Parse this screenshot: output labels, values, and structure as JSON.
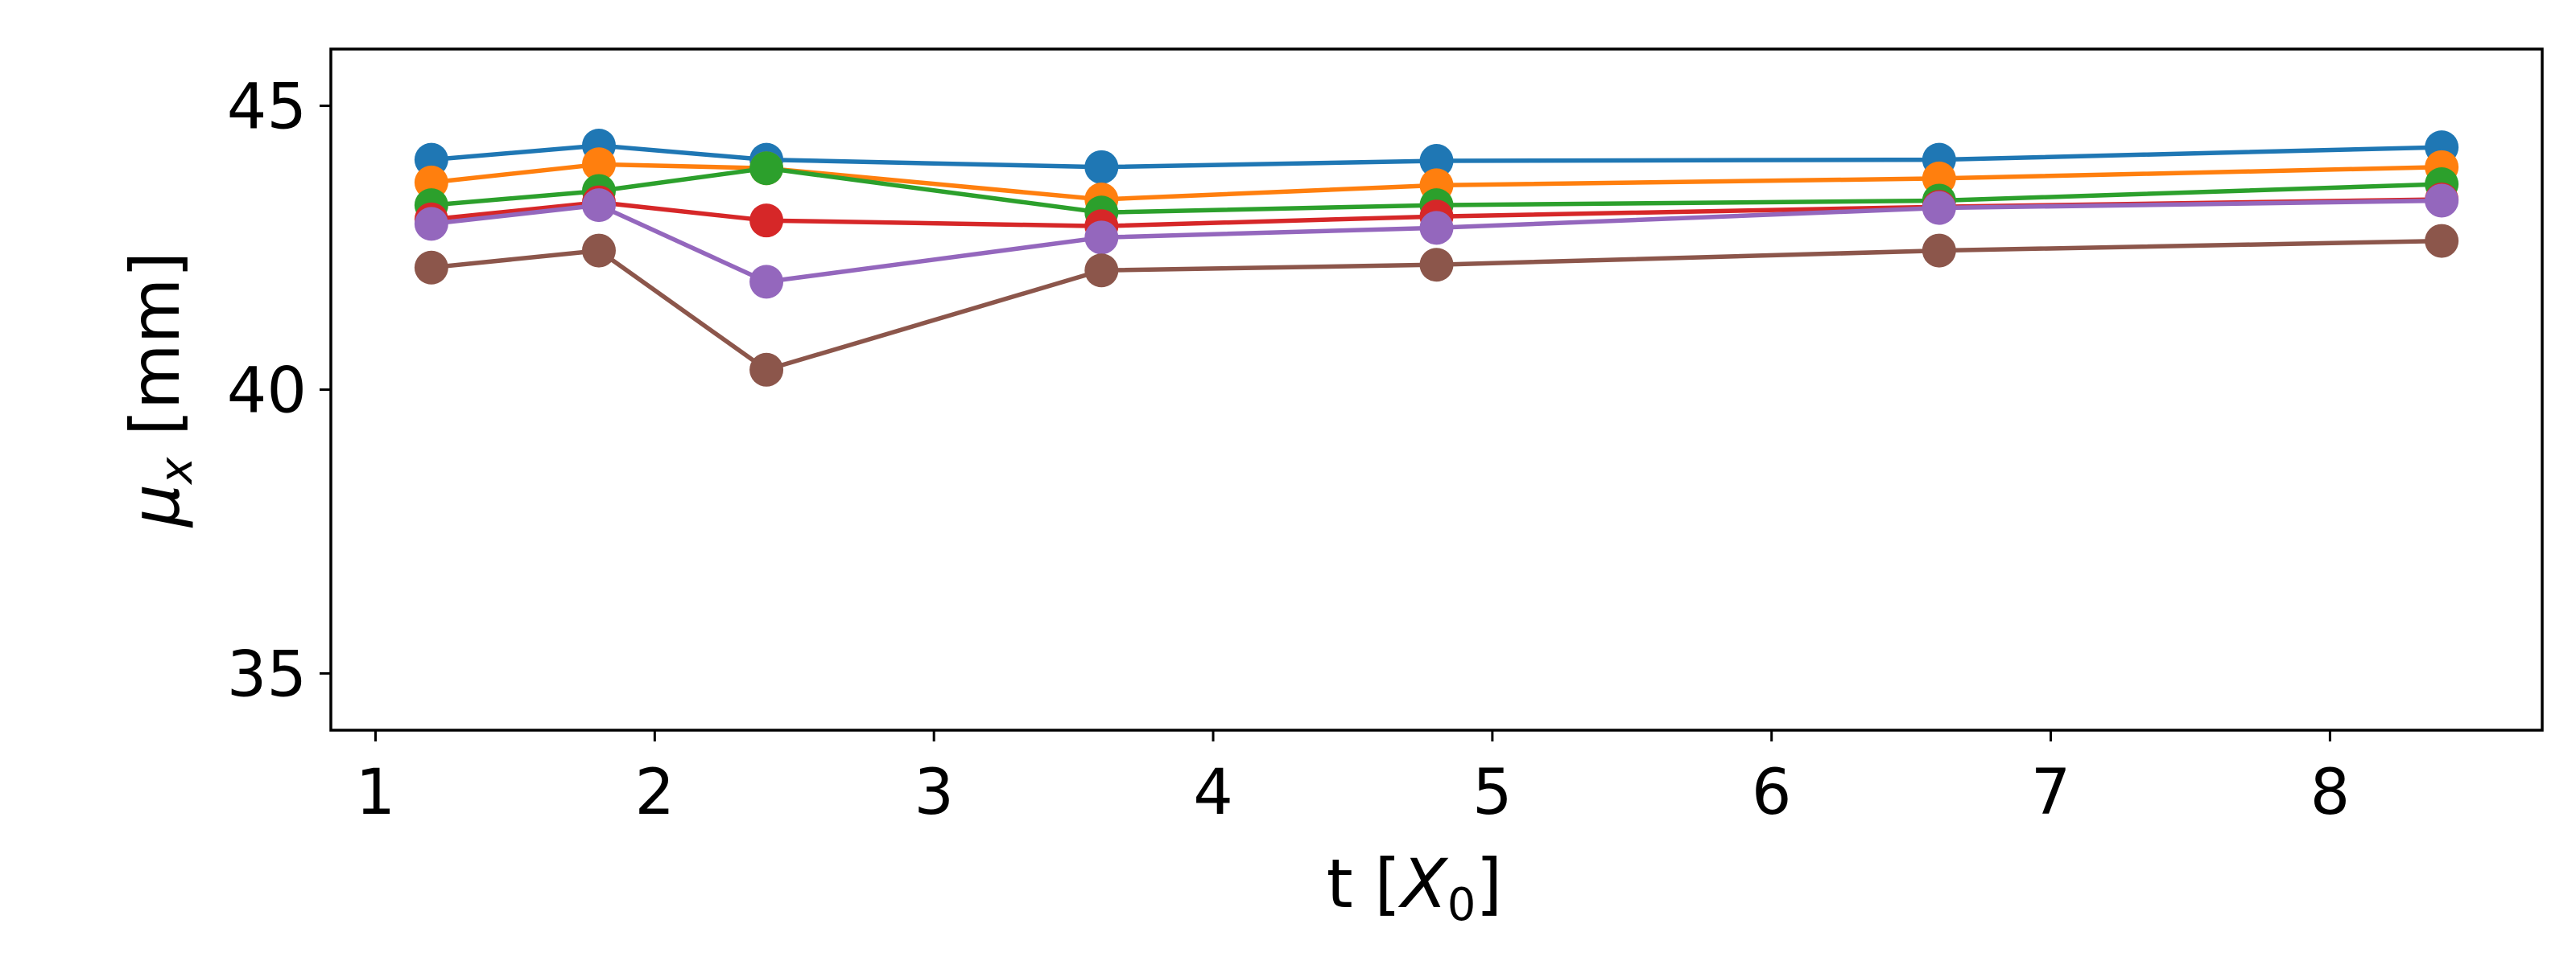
{
  "chart_data": {
    "type": "line",
    "title": "",
    "xlabel": "t [X₀]",
    "ylabel": "μₓ [mm]",
    "xlabel_parts": {
      "prefix": "t [",
      "symbol": "X",
      "sub": "0",
      "suffix": "]"
    },
    "ylabel_parts": {
      "symbol": "μ",
      "sub": "x",
      "suffix": " [mm]"
    },
    "xlim": [
      0.84,
      8.76
    ],
    "ylim": [
      34.0,
      46.0
    ],
    "xticks": [
      1,
      2,
      3,
      4,
      5,
      6,
      7,
      8
    ],
    "yticks": [
      35,
      40,
      45
    ],
    "grid": false,
    "x": [
      1.2,
      1.8,
      2.4,
      3.6,
      4.8,
      6.6,
      8.4
    ],
    "series": [
      {
        "color": "#1f77b4",
        "values": [
          44.05,
          44.3,
          44.05,
          43.92,
          44.03,
          44.05,
          44.27
        ]
      },
      {
        "color": "#ff7f0e",
        "values": [
          43.65,
          43.97,
          43.9,
          43.35,
          43.6,
          43.72,
          43.92
        ]
      },
      {
        "color": "#2ca02c",
        "values": [
          43.25,
          43.5,
          43.9,
          43.12,
          43.25,
          43.33,
          43.62
        ]
      },
      {
        "color": "#d62728",
        "values": [
          43.0,
          43.3,
          42.98,
          42.88,
          43.05,
          43.22,
          43.35
        ]
      },
      {
        "color": "#9467bd",
        "values": [
          42.92,
          43.25,
          41.9,
          42.68,
          42.85,
          43.2,
          43.33
        ]
      },
      {
        "color": "#8c564b",
        "values": [
          42.15,
          42.45,
          40.35,
          42.1,
          42.2,
          42.45,
          42.62
        ]
      }
    ]
  }
}
